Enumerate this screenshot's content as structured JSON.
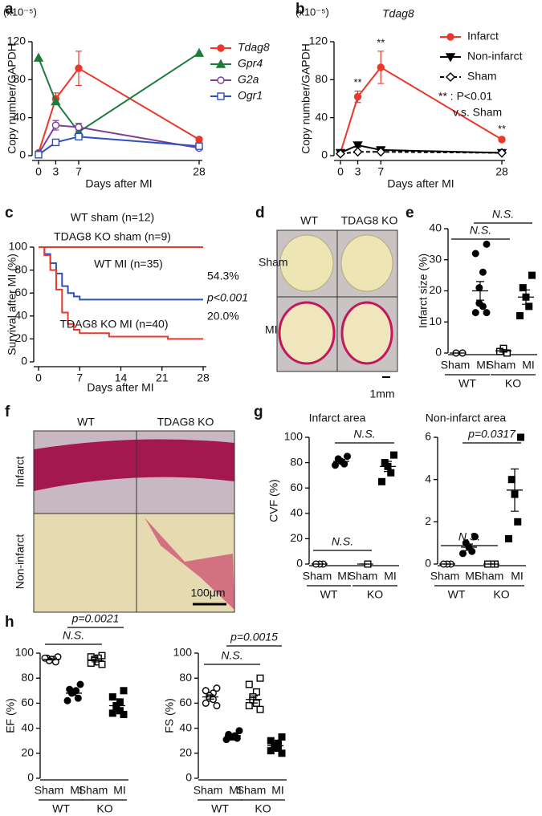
{
  "panel_labels": [
    "a",
    "b",
    "c",
    "d",
    "e",
    "f",
    "g",
    "h"
  ],
  "images": [
    {
      "columns": [
        "WT",
        "TDAG8 KO"
      ],
      "rows": [
        "Sham",
        "MI"
      ],
      "scale_bar": "1mm"
    },
    {
      "columns": [
        "WT",
        "TDAG8 KO"
      ],
      "rows": [
        "Infarct",
        "Non-infarct"
      ],
      "scale_bar": "100μm"
    }
  ],
  "chart_data": [
    {
      "type": "line",
      "y_multiplier": "(x10⁻⁵)",
      "ylabel": "Copy number/GAPDH",
      "xlabel": "Days after MI",
      "x": [
        0,
        3,
        7,
        28
      ],
      "xlim": [
        0,
        28
      ],
      "xticks": [
        0,
        3,
        7,
        28
      ],
      "ylim": [
        0,
        120
      ],
      "yticks": [
        0,
        40,
        80,
        120
      ],
      "legend_italic": true,
      "series": [
        {
          "name": "Tdag8",
          "color": "#e8392b",
          "marker": "circle",
          "values": [
            3,
            60,
            92,
            17
          ],
          "errors": [
            1,
            6,
            18,
            2
          ]
        },
        {
          "name": "Gpr4",
          "color": "#1e7b3a",
          "marker": "triangle",
          "values": [
            103,
            57,
            25,
            108
          ]
        },
        {
          "name": "G2a",
          "color": "#7b3f98",
          "marker": "open-circle",
          "values": [
            2,
            32,
            30,
            8
          ],
          "errors": [
            1,
            5,
            4,
            1
          ]
        },
        {
          "name": "Ogr1",
          "color": "#2e4fbf",
          "marker": "open-square",
          "values": [
            1,
            14,
            20,
            10
          ],
          "errors": [
            0.5,
            1,
            2,
            1
          ]
        }
      ]
    },
    {
      "type": "line",
      "title": "Tdag8",
      "y_multiplier": "(x10⁻⁵)",
      "ylabel": "Copy number/GAPDH",
      "xlabel": "Days after MI",
      "x": [
        0,
        3,
        7,
        28
      ],
      "xlim": [
        0,
        28
      ],
      "xticks": [
        0,
        3,
        7,
        28
      ],
      "ylim": [
        0,
        120
      ],
      "yticks": [
        0,
        40,
        80,
        120
      ],
      "series": [
        {
          "name": "Infarct",
          "color": "#e8392b",
          "marker": "circle",
          "values": [
            3,
            62,
            93,
            17
          ],
          "errors": [
            1,
            6,
            17,
            2
          ]
        },
        {
          "name": "Non-infarct",
          "color": "#000000",
          "marker": "down-triangle",
          "values": [
            3,
            11,
            6,
            3
          ],
          "errors": [
            1,
            2,
            1,
            1
          ]
        },
        {
          "name": "Sham",
          "color": "#000000",
          "marker": "open-diamond",
          "values": [
            2,
            4,
            4,
            3
          ],
          "dashed": true
        }
      ],
      "annotations": [
        {
          "text": "**",
          "series": 0,
          "index": 1
        },
        {
          "text": "**",
          "series": 0,
          "index": 2
        },
        {
          "text": "**",
          "series": 0,
          "index": 3
        }
      ],
      "note": [
        "** : P<0.01",
        "v.s. Sham"
      ]
    },
    {
      "type": "step",
      "ylabel": "Survival after MI (%)",
      "xlabel": "Days after MI",
      "xlim": [
        0,
        28
      ],
      "xticks": [
        0,
        7,
        14,
        21,
        28
      ],
      "ylim": [
        0,
        100
      ],
      "yticks": [
        0,
        20,
        40,
        60,
        80,
        100
      ],
      "series": [
        {
          "name": "WT sham (n=12)",
          "color": "#555555",
          "x": [
            0,
            28
          ],
          "values": [
            100,
            100
          ]
        },
        {
          "name": "TDAG8 KO sham (n=9)",
          "color": "#e8392b",
          "x": [
            0,
            28
          ],
          "values": [
            100,
            100
          ]
        },
        {
          "name": "WT MI (n=35)",
          "color": "#2e4fbf",
          "x": [
            0,
            1,
            2,
            3,
            4,
            5,
            6,
            7,
            28
          ],
          "values": [
            100,
            94,
            86,
            77,
            66,
            60,
            57,
            54.3,
            54.3
          ]
        },
        {
          "name": "TDAG8 KO MI (n=40)",
          "color": "#e8392b",
          "x": [
            0,
            1,
            2,
            3,
            4,
            5,
            6,
            7,
            12,
            22,
            28
          ],
          "values": [
            100,
            93,
            80,
            63,
            43,
            33,
            28,
            25,
            22,
            20,
            20
          ]
        }
      ],
      "annotations": [
        "54.3%",
        "p<0.001",
        "20.0%"
      ]
    },
    {
      "type": "dotplot",
      "ylabel": "Infarct size (%)",
      "categories": [
        "Sham",
        "MI",
        "Sham",
        "MI"
      ],
      "group_labels": [
        "WT",
        "KO"
      ],
      "ylim": [
        0,
        40
      ],
      "yticks": [
        0,
        10,
        20,
        30,
        40
      ],
      "markers": [
        "open-circle",
        "circle",
        "open-square",
        "square"
      ],
      "points": [
        [
          0,
          0,
          0,
          0
        ],
        [
          35,
          32,
          26,
          21,
          16,
          15,
          13,
          13
        ],
        [
          0,
          1.5,
          0.5
        ],
        [
          25,
          21,
          18,
          15,
          12
        ]
      ],
      "means": [
        0,
        20,
        0.7,
        18
      ],
      "sems": [
        0,
        3,
        0.4,
        2.3
      ],
      "annotations": [
        {
          "text": "N.S.",
          "from": 0,
          "to": 2
        },
        {
          "text": "N.S.",
          "from": 1,
          "to": 3
        }
      ]
    },
    {
      "type": "dotplot",
      "title": "Infarct area",
      "ylabel": "CVF (%)",
      "categories": [
        "Sham",
        "MI",
        "Sham",
        "MI"
      ],
      "group_labels": [
        "WT",
        "KO"
      ],
      "ylim": [
        0,
        100
      ],
      "yticks": [
        0,
        20,
        40,
        60,
        80,
        100
      ],
      "markers": [
        "open-circle",
        "circle",
        "open-square",
        "square"
      ],
      "points": [
        [
          0,
          0,
          0
        ],
        [
          85,
          83,
          81,
          79,
          78
        ],
        [
          0,
          0
        ],
        [
          86,
          80,
          77,
          72,
          65
        ]
      ],
      "means": [
        0,
        81,
        0,
        77
      ],
      "sems": [
        0,
        1.5,
        0,
        4
      ],
      "annotations": [
        {
          "text": "N.S.",
          "from": 0,
          "to": 2
        },
        {
          "text": "N.S.",
          "from": 1,
          "to": 3
        }
      ]
    },
    {
      "type": "dotplot",
      "title": "Non-infarct area",
      "categories": [
        "Sham",
        "MI",
        "Sham",
        "MI"
      ],
      "group_labels": [
        "WT",
        "KO"
      ],
      "ylim": [
        0,
        6
      ],
      "yticks": [
        0,
        2,
        4,
        6
      ],
      "markers": [
        "open-circle",
        "circle",
        "open-square",
        "square"
      ],
      "points": [
        [
          0,
          0,
          0
        ],
        [
          1.3,
          1,
          0.8,
          0.6,
          0.5
        ],
        [
          0,
          0,
          0
        ],
        [
          6,
          4,
          3.3,
          2,
          1.2
        ]
      ],
      "means": [
        0,
        0.8,
        0,
        3.5
      ],
      "sems": [
        0,
        0.15,
        0,
        1
      ],
      "annotations": [
        {
          "text": "N.S.",
          "from": 0,
          "to": 2
        },
        {
          "text": "p=0.0317",
          "from": 1,
          "to": 3
        }
      ]
    },
    {
      "type": "dotplot",
      "ylabel": "EF (%)",
      "categories": [
        "Sham",
        "MI",
        "Sham",
        "MI"
      ],
      "group_labels": [
        "WT",
        "KO"
      ],
      "ylim": [
        0,
        100
      ],
      "yticks": [
        0,
        20,
        40,
        60,
        80,
        100
      ],
      "markers": [
        "open-circle",
        "circle",
        "open-square",
        "square"
      ],
      "points": [
        [
          97,
          96,
          95,
          95,
          94,
          93,
          96
        ],
        [
          75,
          71,
          70,
          69,
          68,
          64,
          62
        ],
        [
          98,
          97,
          96,
          95,
          94,
          93,
          92,
          91
        ],
        [
          70,
          65,
          61,
          58,
          56,
          54,
          52,
          51
        ]
      ],
      "means": [
        95,
        68,
        94,
        58
      ],
      "sems": [
        0.5,
        1.7,
        1,
        2.3
      ],
      "annotations": [
        {
          "text": "N.S.",
          "from": 0,
          "to": 2
        },
        {
          "text": "p=0.0021",
          "from": 1,
          "to": 3
        }
      ]
    },
    {
      "type": "dotplot",
      "ylabel": "FS (%)",
      "categories": [
        "Sham",
        "MI",
        "Sham",
        "MI"
      ],
      "group_labels": [
        "WT",
        "KO"
      ],
      "ylim": [
        0,
        100
      ],
      "yticks": [
        0,
        20,
        40,
        60,
        80,
        100
      ],
      "markers": [
        "open-circle",
        "circle",
        "open-square",
        "square"
      ],
      "points": [
        [
          72,
          70,
          68,
          66,
          64,
          63,
          60,
          58
        ],
        [
          38,
          35,
          34,
          33,
          33,
          32,
          31
        ],
        [
          80,
          75,
          69,
          65,
          62,
          60,
          58,
          55
        ],
        [
          33,
          30,
          28,
          26,
          25,
          24,
          22,
          20
        ]
      ],
      "means": [
        65,
        34,
        63,
        26
      ],
      "sems": [
        1.7,
        0.9,
        2.8,
        1.5
      ],
      "annotations": [
        {
          "text": "N.S.",
          "from": 0,
          "to": 2
        },
        {
          "text": "p=0.0015",
          "from": 1,
          "to": 3
        }
      ]
    }
  ]
}
